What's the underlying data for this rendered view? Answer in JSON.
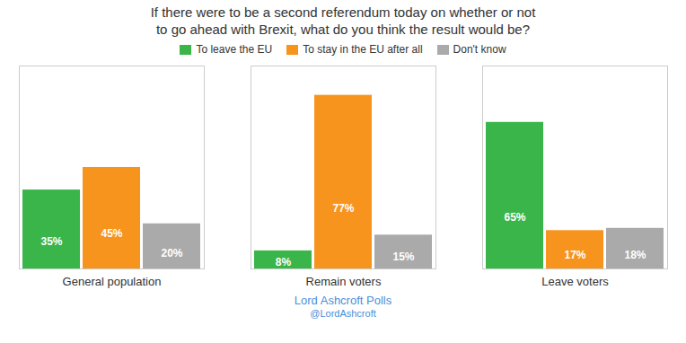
{
  "chart_data": {
    "type": "bar",
    "title": "If there were to be a second referendum today on whether or not\nto go ahead with Brexit, what do you think the result would be?",
    "categories": [
      "General population",
      "Remain voters",
      "Leave voters"
    ],
    "series": [
      {
        "name": "To leave the EU",
        "color": "#3ab54a",
        "values": [
          35,
          8,
          65
        ],
        "value_labels": [
          "35%",
          "8%",
          "65%"
        ]
      },
      {
        "name": "To stay in the EU after all",
        "color": "#f7941d",
        "values": [
          45,
          77,
          17
        ],
        "value_labels": [
          "45%",
          "77%",
          "17%"
        ]
      },
      {
        "name": "Don't know",
        "color": "#aaaaaa",
        "values": [
          20,
          15,
          18
        ],
        "value_labels": [
          "20%",
          "15%",
          "18%"
        ]
      }
    ],
    "ylim": [
      0,
      90
    ],
    "grid": false,
    "legend": "top",
    "data_labels": true,
    "tick_labels": "x",
    "annotations": [
      {
        "text": "Lord Ashcroft Polls",
        "color": "#4a90d9"
      },
      {
        "text": "@LordAshcroft",
        "color": "#4a90d9"
      }
    ]
  }
}
